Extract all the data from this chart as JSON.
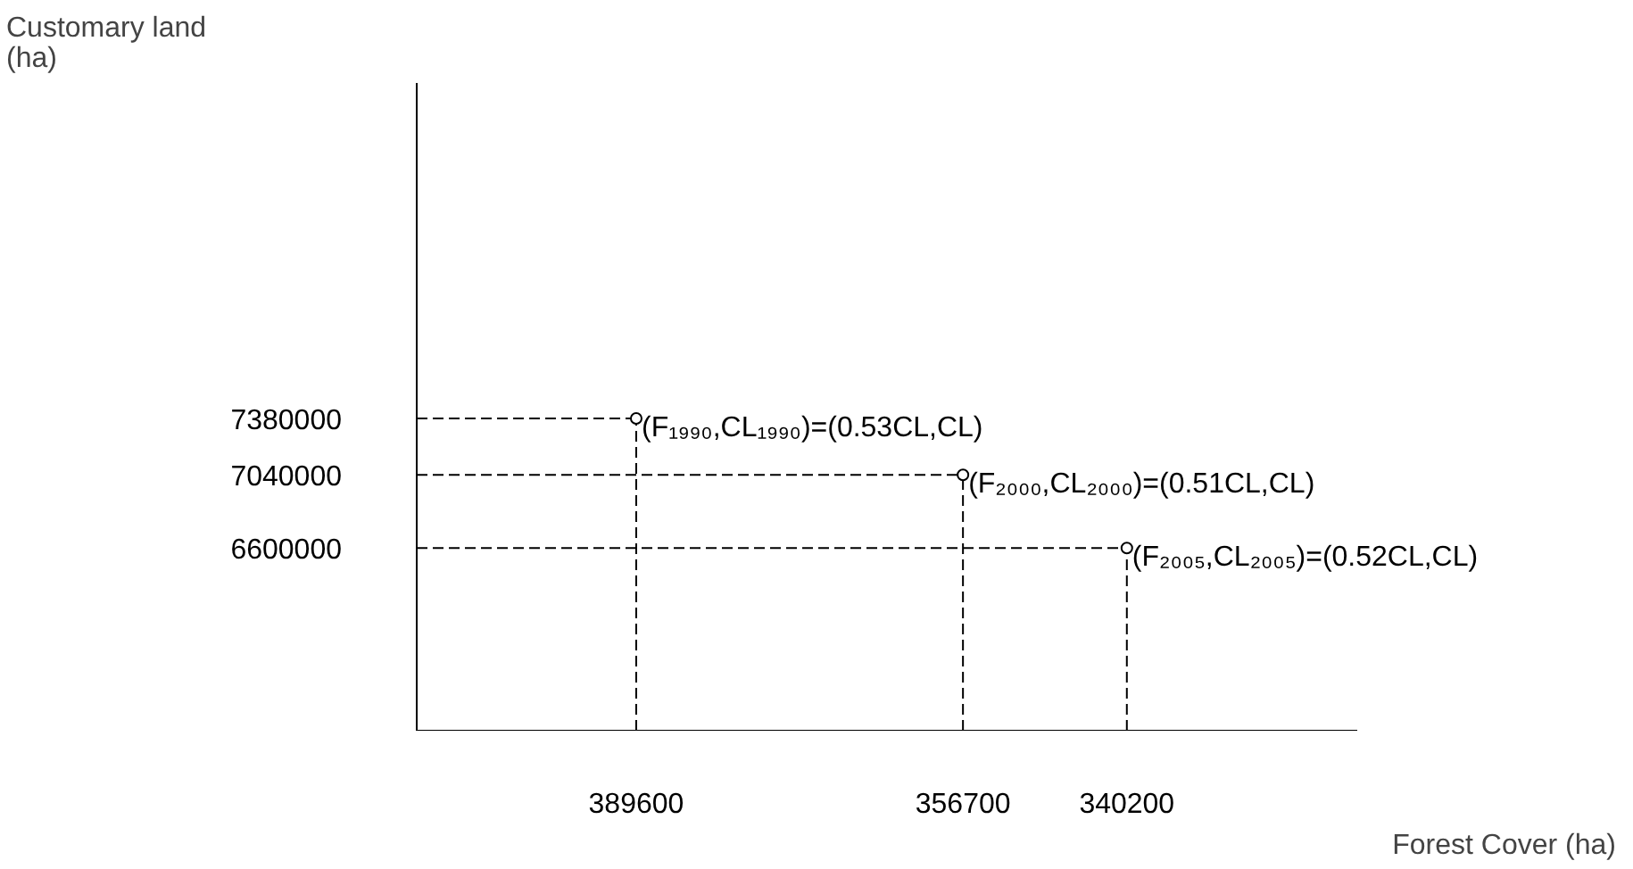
{
  "chart_data": {
    "type": "scatter",
    "xlabel": "Forest Cover (ha)",
    "ylabel": "Customary land\n(ha)",
    "x": [
      389600,
      356700,
      340200
    ],
    "series": [
      {
        "color": "#000000",
        "values": [
          7380000,
          7040000,
          6600000
        ]
      }
    ],
    "marker": "circle",
    "xlim": [
      411700,
      317000
    ],
    "ylim": [
      5500000,
      9400000
    ],
    "xticks": [
      389600,
      356700,
      340200
    ],
    "yticks": [
      6600000,
      7040000,
      7380000
    ],
    "grid": false,
    "ref_lines": [
      {
        "axis": "y",
        "value": 7380000,
        "line_style": "dashed",
        "color": "#000000"
      },
      {
        "axis": "y",
        "value": 7040000,
        "line_style": "dashed",
        "color": "#000000"
      },
      {
        "axis": "y",
        "value": 6600000,
        "line_style": "dashed",
        "color": "#000000"
      },
      {
        "axis": "x",
        "value": 389600,
        "line_style": "dashed",
        "color": "#000000"
      },
      {
        "axis": "x",
        "value": 356700,
        "line_style": "dashed",
        "color": "#000000"
      },
      {
        "axis": "x",
        "value": 340200,
        "line_style": "dashed",
        "color": "#000000"
      }
    ],
    "annotations": [
      {
        "text": "(F₁₉₉₀,CL₁₉₉₀)=(0.53CL,CL)",
        "x": 389600,
        "y": 7380000
      },
      {
        "text": "(F₂₀₀₀,CL₂₀₀₀)=(0.51CL,CL)",
        "x": 356700,
        "y": 7040000
      },
      {
        "text": "(F₂₀₀₅,CL₂₀₀₅)=(0.52CL,CL)",
        "x": 340200,
        "y": 6600000
      }
    ]
  }
}
